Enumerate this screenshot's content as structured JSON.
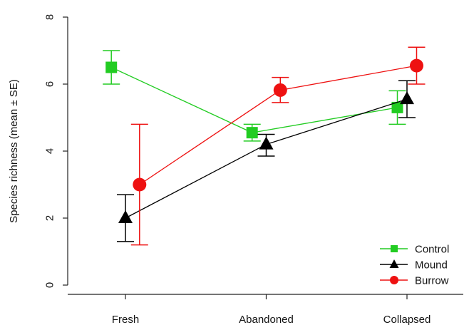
{
  "chart_data": {
    "type": "line",
    "title": "",
    "xlabel": "",
    "ylabel": "Species richness (mean ± SE)",
    "categories": [
      "Fresh",
      "Abandoned",
      "Collapsed"
    ],
    "ylim": [
      0,
      8
    ],
    "yticks": [
      0,
      2,
      4,
      6,
      8
    ],
    "grid": false,
    "legend_position": "bottom-right",
    "error_bars": "mean ± SE",
    "series": [
      {
        "name": "Control",
        "color": "#22cc22",
        "marker": "square",
        "points": [
          {
            "category": "Fresh",
            "x_offset": -0.22,
            "y": 6.5,
            "lower": 6.0,
            "upper": 7.0
          },
          {
            "category": "Abandoned",
            "x_offset": -0.22,
            "y": 4.55,
            "lower": 4.3,
            "upper": 4.8
          },
          {
            "category": "Collapsed",
            "x_offset": -0.15,
            "y": 5.3,
            "lower": 4.8,
            "upper": 5.8
          }
        ]
      },
      {
        "name": "Mound",
        "color": "#000000",
        "marker": "triangle",
        "points": [
          {
            "category": "Fresh",
            "x_offset": 0.0,
            "y": 2.0,
            "lower": 1.3,
            "upper": 2.7
          },
          {
            "category": "Abandoned",
            "x_offset": 0.0,
            "y": 4.2,
            "lower": 3.85,
            "upper": 4.5
          },
          {
            "category": "Collapsed",
            "x_offset": 0.0,
            "y": 5.55,
            "lower": 5.0,
            "upper": 6.1
          }
        ]
      },
      {
        "name": "Burrow",
        "color": "#ee1111",
        "marker": "circle",
        "points": [
          {
            "category": "Fresh",
            "x_offset": 0.22,
            "y": 3.0,
            "lower": 1.2,
            "upper": 4.8
          },
          {
            "category": "Abandoned",
            "x_offset": 0.22,
            "y": 5.82,
            "lower": 5.45,
            "upper": 6.2
          },
          {
            "category": "Collapsed",
            "x_offset": 0.15,
            "y": 6.55,
            "lower": 6.0,
            "upper": 7.1
          }
        ]
      }
    ]
  }
}
